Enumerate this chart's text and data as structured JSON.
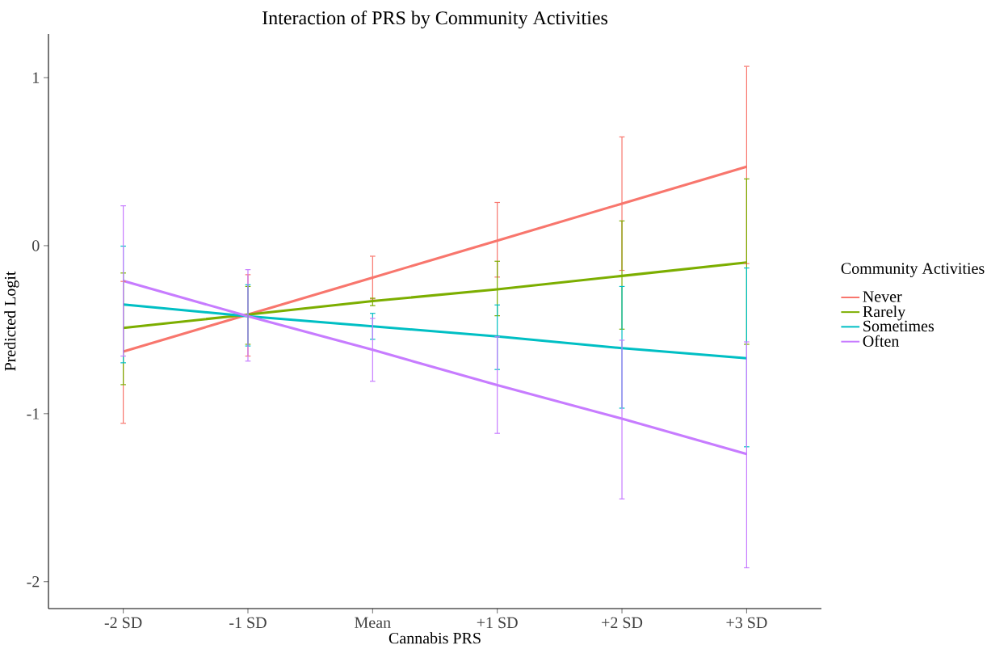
{
  "chart_data": {
    "type": "line",
    "title": "Interaction of PRS by Community Activities",
    "xlabel": "Cannabis PRS",
    "ylabel": "Predicted Logit",
    "legend_title": "Community Activities",
    "categories": [
      "-2 SD",
      "-1 SD",
      "Mean",
      "+1 SD",
      "+2 SD",
      "+3 SD"
    ],
    "series": [
      {
        "name": "Never",
        "color": "#f8766d",
        "values": [
          -0.63,
          -0.41,
          -0.19,
          0.03,
          0.25,
          0.47
        ],
        "errors": [
          [
            -1.06,
            -0.21
          ],
          [
            -0.66,
            -0.17
          ],
          [
            -0.32,
            -0.06
          ],
          [
            -0.19,
            0.26
          ],
          [
            -0.15,
            0.65
          ],
          [
            -0.11,
            1.07
          ]
        ]
      },
      {
        "name": "Rarely",
        "color": "#7cae00",
        "values": [
          -0.49,
          -0.41,
          -0.33,
          -0.26,
          -0.18,
          -0.1
        ],
        "errors": [
          [
            -0.83,
            -0.16
          ],
          [
            -0.59,
            -0.24
          ],
          [
            -0.36,
            -0.31
          ],
          [
            -0.42,
            -0.09
          ],
          [
            -0.5,
            0.15
          ],
          [
            -0.59,
            0.4
          ]
        ]
      },
      {
        "name": "Sometimes",
        "color": "#00bfc4",
        "values": [
          -0.35,
          -0.42,
          -0.48,
          -0.54,
          -0.61,
          -0.67
        ],
        "errors": [
          [
            -0.7,
            0.0
          ],
          [
            -0.6,
            -0.23
          ],
          [
            -0.56,
            -0.4
          ],
          [
            -0.74,
            -0.35
          ],
          [
            -0.97,
            -0.24
          ],
          [
            -1.2,
            -0.13
          ]
        ]
      },
      {
        "name": "Often",
        "color": "#c77cff",
        "values": [
          -0.21,
          -0.42,
          -0.62,
          -0.83,
          -1.03,
          -1.24
        ],
        "errors": [
          [
            -0.66,
            0.24
          ],
          [
            -0.69,
            -0.14
          ],
          [
            -0.81,
            -0.43
          ],
          [
            -1.12,
            -0.54
          ],
          [
            -1.51,
            -0.56
          ],
          [
            -1.92,
            -0.57
          ]
        ]
      }
    ],
    "ylim": [
      -2.16,
      1.26
    ],
    "yticks": [
      -2,
      -1,
      0,
      1
    ],
    "grid": false,
    "legend": "right",
    "marker": "none",
    "line_style": "solid"
  }
}
